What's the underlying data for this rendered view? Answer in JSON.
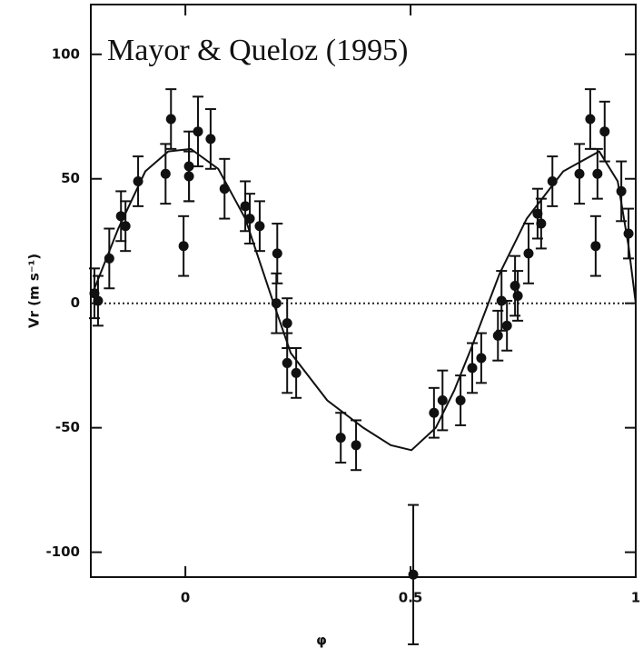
{
  "chart_data": {
    "type": "scatter",
    "title": "Mayor & Queloz (1995)",
    "x_label": "φ",
    "y_label": "Vr (m s⁻¹)",
    "xlim": [
      -0.21,
      1.0
    ],
    "ylim": [
      -110,
      120
    ],
    "xticks": [
      0,
      0.5,
      1
    ],
    "yticks": [
      100,
      50,
      0,
      -50,
      -100
    ],
    "hline": 0,
    "color": "#111111",
    "points": {
      "x": [
        -0.202,
        -0.194,
        -0.169,
        -0.143,
        -0.133,
        -0.105,
        -0.044,
        -0.032,
        -0.004,
        0.008,
        0.008,
        0.028,
        0.056,
        0.087,
        0.133,
        0.143,
        0.165,
        0.204,
        0.202,
        0.226,
        0.226,
        0.246,
        0.345,
        0.379,
        0.506,
        0.552,
        0.571,
        0.611,
        0.637,
        0.657,
        0.694,
        0.702,
        0.714,
        0.732,
        0.738,
        0.762,
        0.782,
        0.79,
        0.815,
        0.875,
        0.899,
        0.911,
        0.915,
        0.931,
        0.968,
        0.984
      ],
      "values": [
        4,
        1,
        18,
        35,
        31,
        49,
        52,
        74,
        23,
        51,
        55,
        69,
        66,
        46,
        39,
        34,
        31,
        20,
        0,
        -8,
        -24,
        -28,
        -54,
        -57,
        -109,
        -44,
        -39,
        -39,
        -26,
        -22,
        -13,
        1,
        -9,
        7,
        3,
        20,
        36,
        32,
        49,
        52,
        74,
        23,
        52,
        69,
        45,
        28
      ],
      "errors": [
        10,
        10,
        12,
        10,
        10,
        10,
        12,
        12,
        12,
        10,
        14,
        14,
        12,
        12,
        10,
        10,
        10,
        12,
        12,
        10,
        12,
        10,
        10,
        10,
        28,
        10,
        12,
        10,
        10,
        10,
        10,
        12,
        10,
        12,
        10,
        12,
        10,
        10,
        10,
        12,
        12,
        12,
        10,
        12,
        12,
        10
      ]
    },
    "fit": {
      "x": [
        -0.204,
        -0.149,
        -0.089,
        -0.038,
        0.012,
        0.073,
        0.133,
        0.194,
        0.234,
        0.315,
        0.395,
        0.456,
        0.502,
        0.556,
        0.597,
        0.637,
        0.698,
        0.758,
        0.839,
        0.919,
        0.96,
        0.984,
        1.0
      ],
      "values": [
        5,
        30,
        53,
        61,
        62,
        54,
        34,
        1,
        -20,
        -39,
        -50,
        -57,
        -59,
        -50,
        -35,
        -17,
        12,
        34,
        53,
        61,
        49,
        23,
        0
      ]
    }
  }
}
